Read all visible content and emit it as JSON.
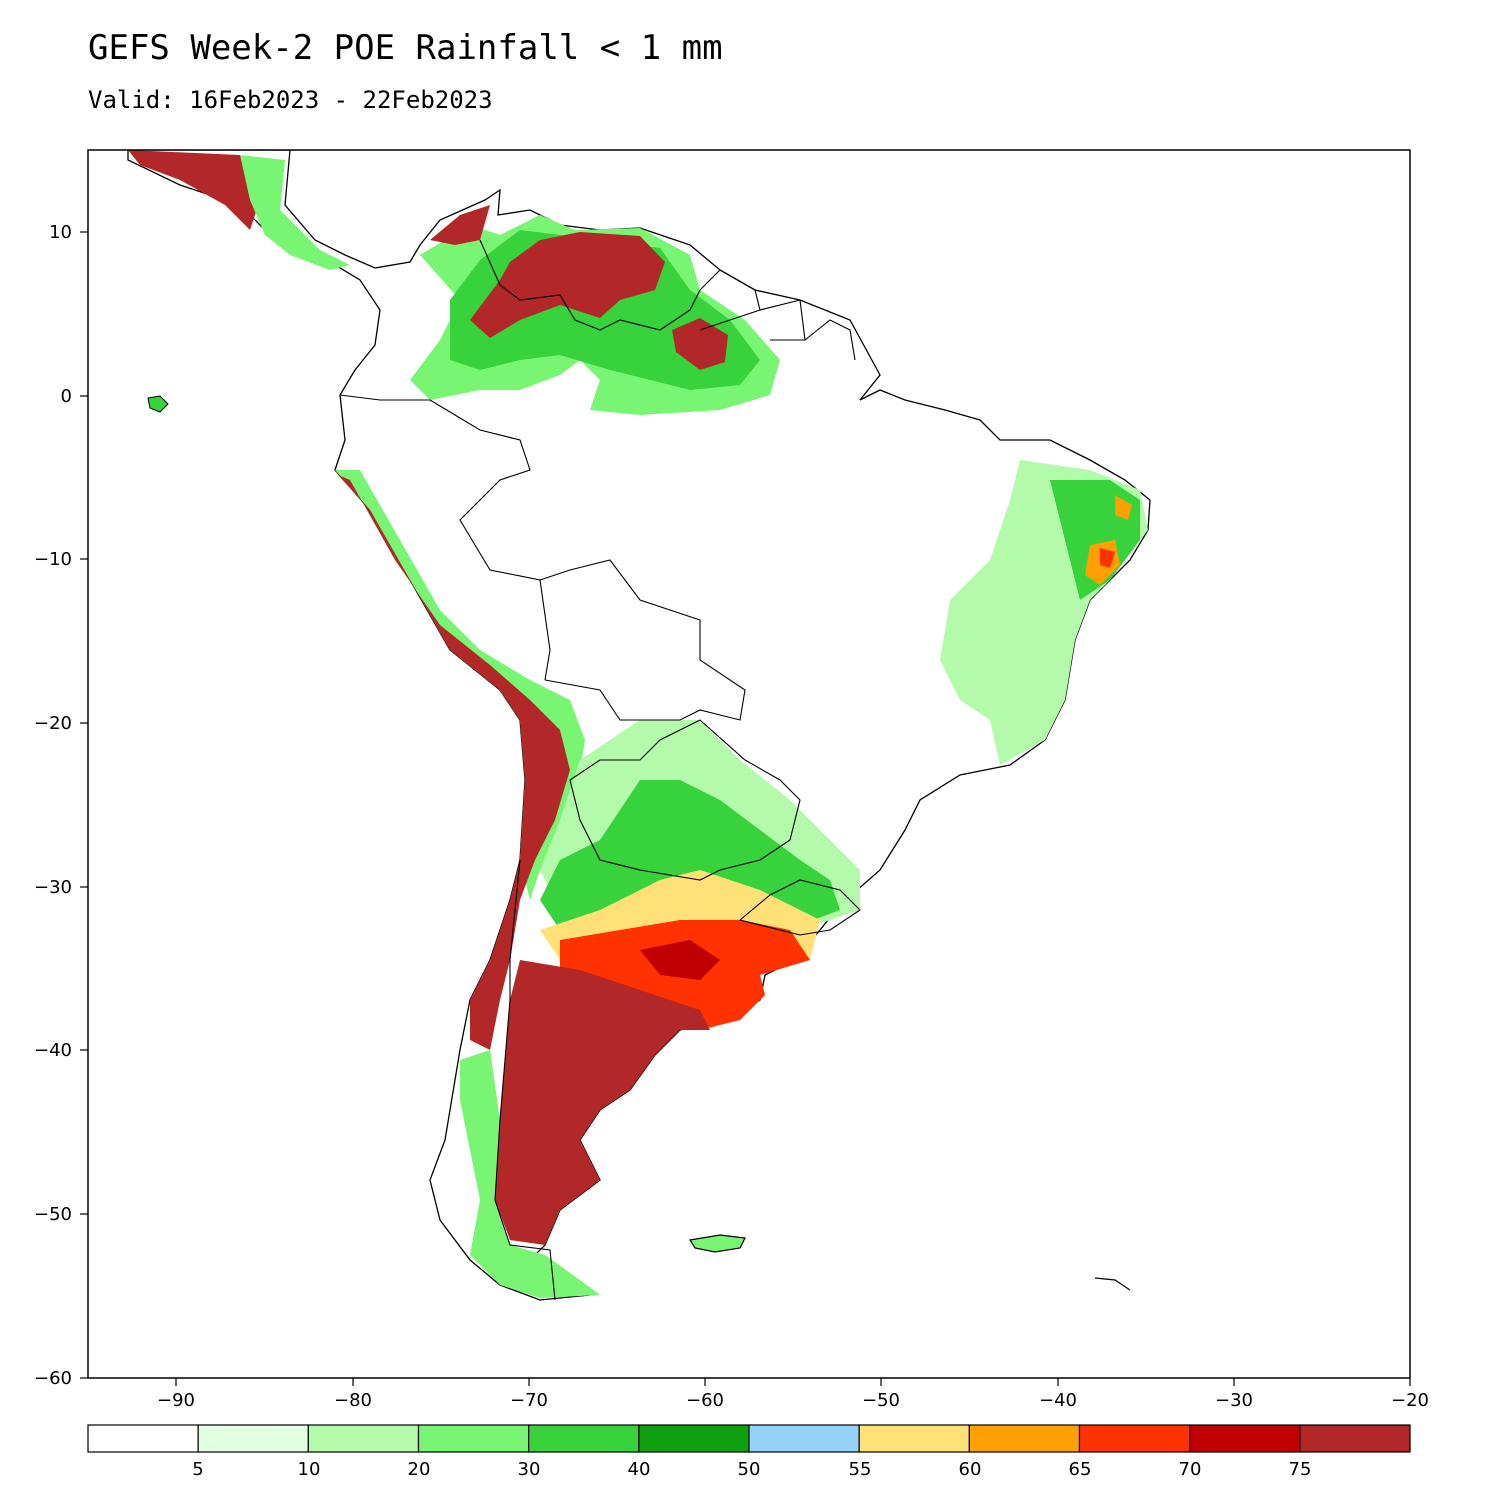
{
  "title": "GEFS Week-2 POE Rainfall < 1 mm",
  "subtitle": "Valid: 16Feb2023 - 22Feb2023",
  "map": {
    "lon_range": [
      -95,
      -20
    ],
    "lat_range": [
      -60,
      15
    ],
    "lat_ticks": [
      "10",
      "0",
      "−10",
      "−20",
      "−30",
      "−40",
      "−50",
      "−60"
    ],
    "lon_ticks": [
      "−90",
      "−80",
      "−70",
      "−60",
      "−50",
      "−40",
      "−30",
      "−20"
    ]
  },
  "colorbar": {
    "labels": [
      "5",
      "10",
      "20",
      "30",
      "40",
      "50",
      "55",
      "60",
      "65",
      "70",
      "75"
    ],
    "colors": [
      "#ffffff",
      "#e1ffe1",
      "#b4faab",
      "#78f573",
      "#37d23c",
      "#0fa00f",
      "#96d2fa",
      "#ffe178",
      "#ffa000",
      "#ff3200",
      "#c00000",
      "#b22828"
    ]
  }
}
